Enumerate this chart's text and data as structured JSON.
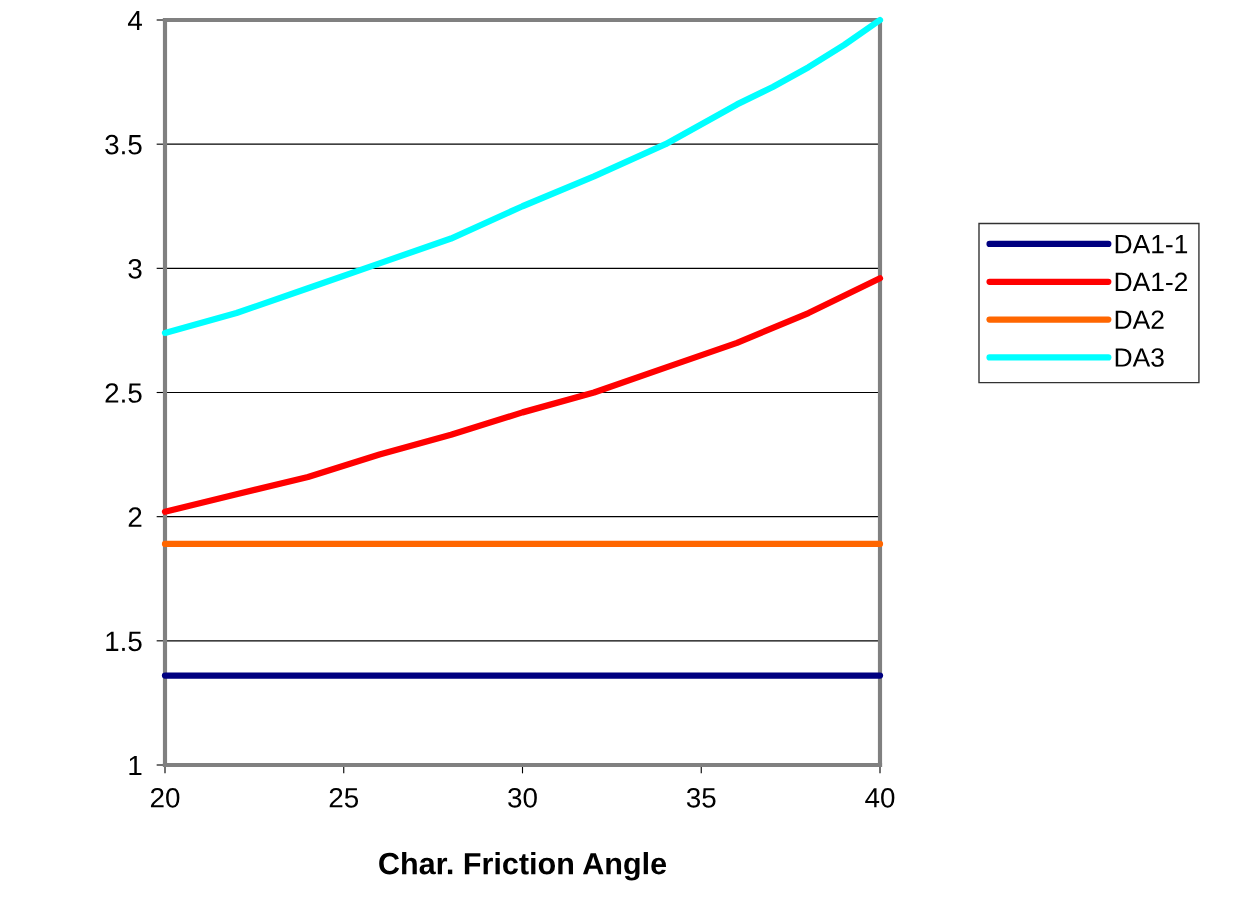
{
  "chart_data": {
    "type": "line",
    "xlabel": "Char. Friction Angle",
    "series": [
      {
        "name": "DA1-1",
        "color": "#000080",
        "x": [
          20,
          30,
          40
        ],
        "values": [
          1.36,
          1.36,
          1.36
        ]
      },
      {
        "name": "DA1-2",
        "color": "#ff0000",
        "x": [
          20,
          22,
          24,
          26,
          28,
          30,
          32,
          34,
          36,
          38,
          40
        ],
        "values": [
          2.02,
          2.09,
          2.16,
          2.25,
          2.33,
          2.42,
          2.5,
          2.6,
          2.7,
          2.82,
          2.96
        ]
      },
      {
        "name": "DA2",
        "color": "#ff6600",
        "x": [
          20,
          30,
          40
        ],
        "values": [
          1.89,
          1.89,
          1.89
        ]
      },
      {
        "name": "DA3",
        "color": "#00ffff",
        "x": [
          20,
          22,
          24,
          26,
          28,
          30,
          32,
          34,
          36,
          37,
          38,
          39,
          40
        ],
        "values": [
          2.74,
          2.82,
          2.92,
          3.02,
          3.12,
          3.25,
          3.37,
          3.5,
          3.66,
          3.73,
          3.81,
          3.9,
          4.0
        ]
      }
    ],
    "xlim": [
      20,
      40
    ],
    "xticks": [
      20,
      25,
      30,
      35,
      40
    ],
    "ylim": [
      1,
      4
    ],
    "yticks": [
      1,
      1.5,
      2,
      2.5,
      3,
      3.5,
      4
    ],
    "grid": "y",
    "legend": "right",
    "marker": "none",
    "line_style": "solid"
  }
}
